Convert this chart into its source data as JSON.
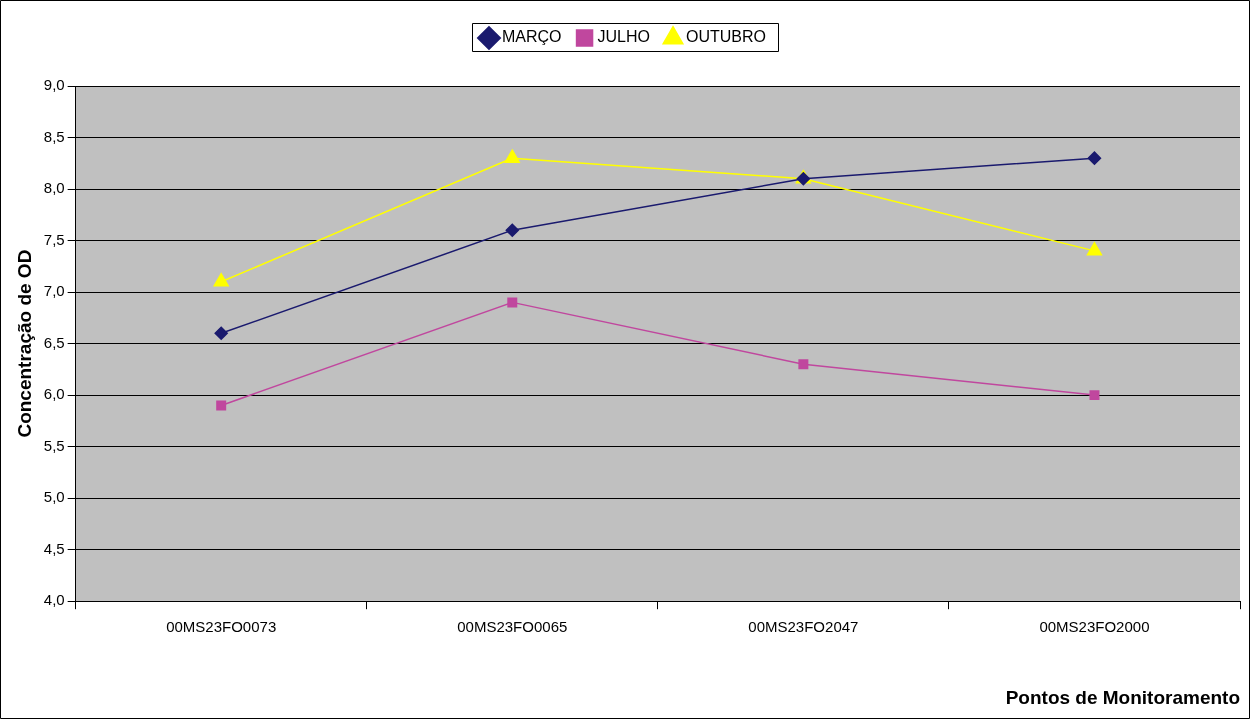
{
  "chart_data": {
    "type": "line",
    "xlabel": "Pontos de Monitoramento",
    "ylabel": "Concentração de OD",
    "categories": [
      "00MS23FO0073",
      "00MS23FO0065",
      "00MS23FO2047",
      "00MS23FO2000"
    ],
    "series": [
      {
        "name": "MARÇO",
        "color": "#1a1a6e",
        "marker": "diamond",
        "values": [
          6.6,
          7.6,
          8.1,
          8.3
        ]
      },
      {
        "name": "JULHO",
        "color": "#c0479e",
        "marker": "square",
        "values": [
          5.9,
          6.9,
          6.3,
          6.0
        ]
      },
      {
        "name": "OUTUBRO",
        "color": "#ffff00",
        "marker": "triangle",
        "values": [
          7.1,
          8.3,
          8.1,
          7.4
        ]
      }
    ],
    "ylim": [
      4.0,
      9.0
    ],
    "yticks": [
      {
        "value": 4.0,
        "label": "4,0"
      },
      {
        "value": 4.5,
        "label": "4,5"
      },
      {
        "value": 5.0,
        "label": "5,0"
      },
      {
        "value": 5.5,
        "label": "5,5"
      },
      {
        "value": 6.0,
        "label": "6,0"
      },
      {
        "value": 6.5,
        "label": "6,5"
      },
      {
        "value": 7.0,
        "label": "7,0"
      },
      {
        "value": 7.5,
        "label": "7,5"
      },
      {
        "value": 8.0,
        "label": "8,0"
      },
      {
        "value": 8.5,
        "label": "8,5"
      },
      {
        "value": 9.0,
        "label": "9,0"
      }
    ],
    "grid": "y",
    "legend": "top",
    "line_style": "solid"
  }
}
